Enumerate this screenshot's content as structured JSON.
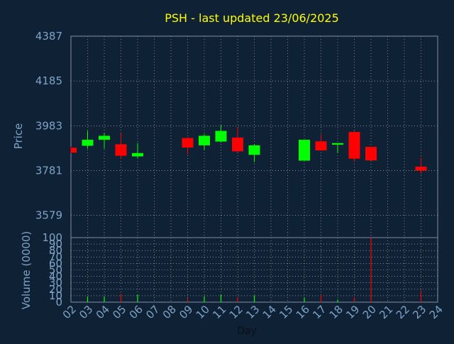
{
  "chart_data": [
    {
      "type": "candlestick",
      "title": "PSH - last updated 23/06/2025",
      "ylabel": "Price",
      "ylim": [
        3479,
        4387
      ],
      "yticks": [
        3579,
        3781,
        3983,
        4185,
        4387
      ],
      "grid": true,
      "categories": [
        "02",
        "03",
        "04",
        "05",
        "06",
        "07",
        "08",
        "09",
        "10",
        "11",
        "12",
        "13",
        "14",
        "15",
        "16",
        "17",
        "18",
        "19",
        "20",
        "21",
        "22",
        "23",
        "24"
      ],
      "candles": [
        {
          "x": "02",
          "open": 3884,
          "close": 3862,
          "high": 3890,
          "low": 3860
        },
        {
          "x": "03",
          "open": 3893,
          "close": 3920,
          "high": 3960,
          "low": 3880
        },
        {
          "x": "04",
          "open": 3920,
          "close": 3938,
          "high": 3950,
          "low": 3880
        },
        {
          "x": "05",
          "open": 3900,
          "close": 3848,
          "high": 3950,
          "low": 3835
        },
        {
          "x": "06",
          "open": 3845,
          "close": 3860,
          "high": 3905,
          "low": 3838
        },
        {
          "x": "09",
          "open": 3928,
          "close": 3885,
          "high": 3930,
          "low": 3855
        },
        {
          "x": "10",
          "open": 3895,
          "close": 3938,
          "high": 3945,
          "low": 3875
        },
        {
          "x": "11",
          "open": 3912,
          "close": 3960,
          "high": 3985,
          "low": 3908
        },
        {
          "x": "12",
          "open": 3930,
          "close": 3868,
          "high": 3975,
          "low": 3862
        },
        {
          "x": "13",
          "open": 3852,
          "close": 3895,
          "high": 3900,
          "low": 3820
        },
        {
          "x": "16",
          "open": 3826,
          "close": 3920,
          "high": 3920,
          "low": 3826
        },
        {
          "x": "17",
          "open": 3913,
          "close": 3872,
          "high": 3945,
          "low": 3870
        },
        {
          "x": "18",
          "open": 3898,
          "close": 3905,
          "high": 3905,
          "low": 3862
        },
        {
          "x": "19",
          "open": 3955,
          "close": 3835,
          "high": 3958,
          "low": 3822
        },
        {
          "x": "20",
          "open": 3888,
          "close": 3827,
          "high": 3890,
          "low": 3824
        },
        {
          "x": "23",
          "open": 3799,
          "close": 3781,
          "high": 3840,
          "low": 3765
        }
      ],
      "colors": {
        "up": "#00ff00",
        "down": "#ff0000",
        "title": "#ffff00",
        "axis": "#7fa3c7",
        "grid": "#ffffff",
        "frame": "#7f8fa6"
      }
    },
    {
      "type": "bar",
      "ylabel": "Volume (0000)",
      "xlabel": "Day",
      "ylim": [
        0,
        100
      ],
      "yticks": [
        0,
        10,
        20,
        30,
        40,
        50,
        60,
        70,
        80,
        90,
        100
      ],
      "grid": true,
      "categories": [
        "02",
        "03",
        "04",
        "05",
        "06",
        "07",
        "08",
        "09",
        "10",
        "11",
        "12",
        "13",
        "14",
        "15",
        "16",
        "17",
        "18",
        "19",
        "20",
        "21",
        "22",
        "23",
        "24"
      ],
      "bars": [
        {
          "x": "03",
          "value": 9,
          "dir": "up"
        },
        {
          "x": "04",
          "value": 9,
          "dir": "up"
        },
        {
          "x": "05",
          "value": 13,
          "dir": "down"
        },
        {
          "x": "06",
          "value": 12,
          "dir": "up"
        },
        {
          "x": "09",
          "value": 6,
          "dir": "down"
        },
        {
          "x": "10",
          "value": 9,
          "dir": "up"
        },
        {
          "x": "11",
          "value": 12,
          "dir": "up"
        },
        {
          "x": "12",
          "value": 8,
          "dir": "down"
        },
        {
          "x": "13",
          "value": 10,
          "dir": "up"
        },
        {
          "x": "16",
          "value": 7,
          "dir": "up"
        },
        {
          "x": "17",
          "value": 11,
          "dir": "down"
        },
        {
          "x": "18",
          "value": 4,
          "dir": "up"
        },
        {
          "x": "19",
          "value": 8,
          "dir": "down"
        },
        {
          "x": "20",
          "value": 100,
          "dir": "down"
        },
        {
          "x": "23",
          "value": 18,
          "dir": "down"
        }
      ]
    }
  ]
}
